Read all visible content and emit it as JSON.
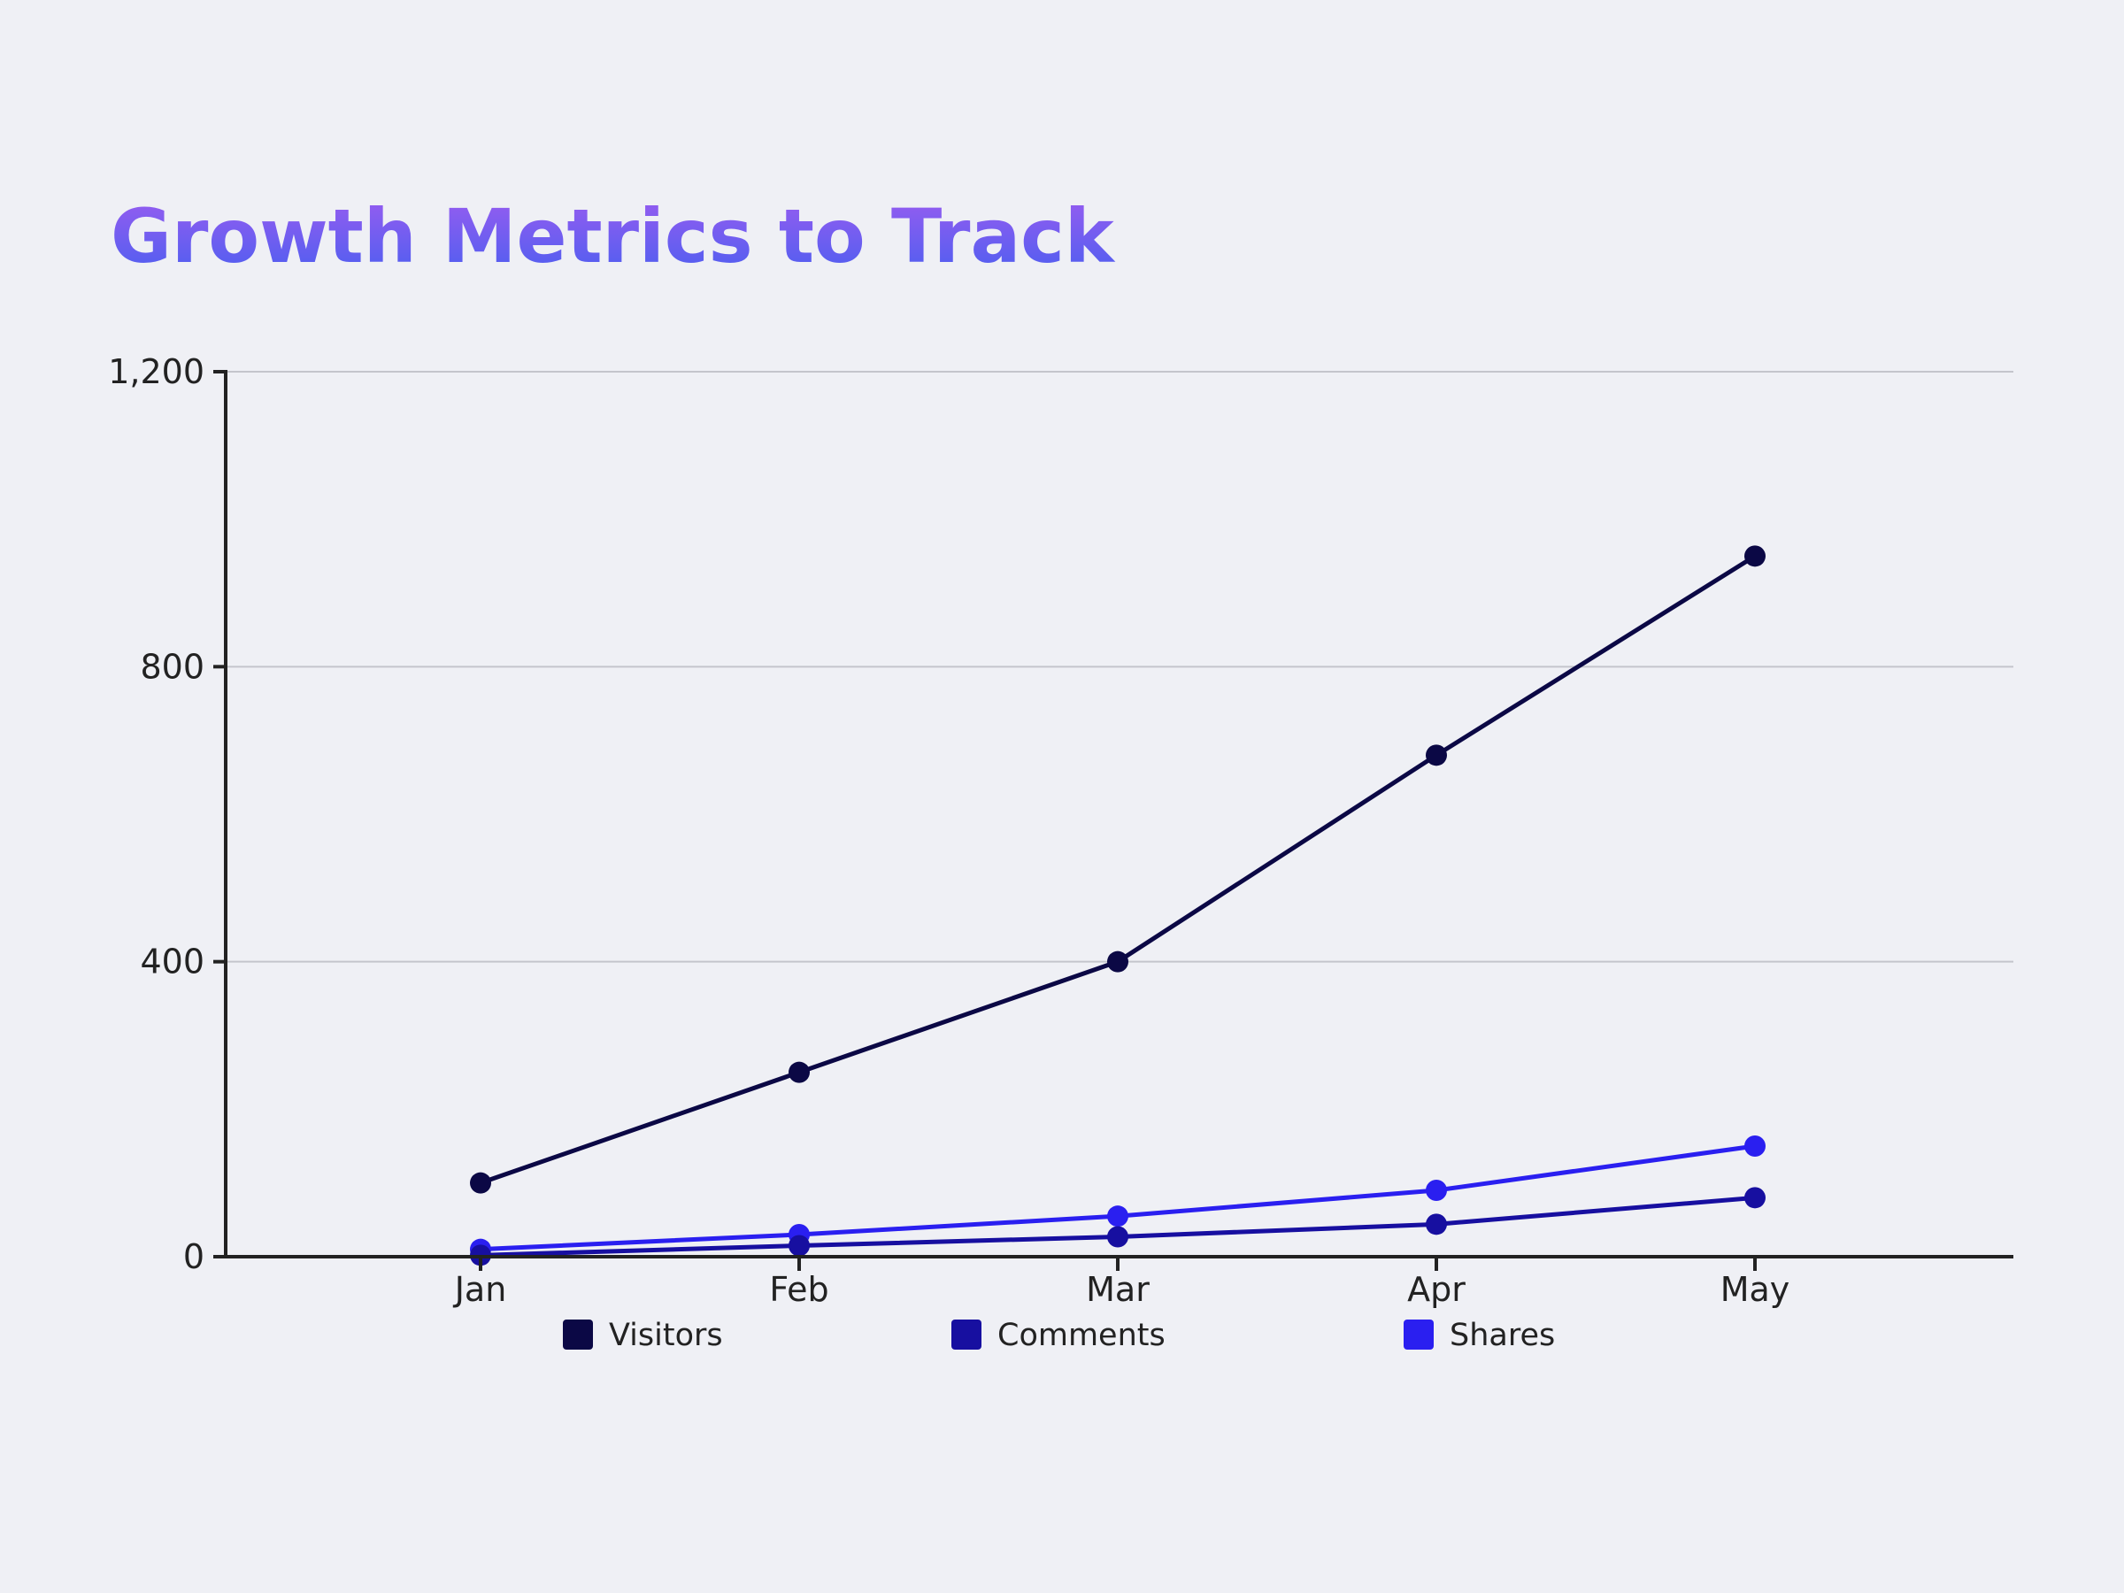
{
  "chart_data": {
    "type": "line",
    "title": "Growth Metrics to Track",
    "xlabel": "",
    "ylabel": "",
    "categories": [
      "Jan",
      "Feb",
      "Mar",
      "Apr",
      "May"
    ],
    "series": [
      {
        "name": "Visitors",
        "values": [
          100,
          250,
          400,
          680,
          950
        ],
        "color": "#0b0845"
      },
      {
        "name": "Comments",
        "values": [
          2,
          15,
          27,
          44,
          80
        ],
        "color": "#170fa0"
      },
      {
        "name": "Shares",
        "values": [
          10,
          30,
          55,
          90,
          150
        ],
        "color": "#2a1ff0"
      }
    ],
    "ylim": [
      0,
      1200
    ],
    "yticks": [
      0,
      400,
      800,
      1200
    ],
    "ytick_labels": [
      "0",
      "400",
      "800",
      "1,200"
    ],
    "grid": true,
    "legend_position": "bottom",
    "title_gradient": [
      "#9a5cf0",
      "#4a5ff0"
    ],
    "background": "#eff0f5"
  }
}
